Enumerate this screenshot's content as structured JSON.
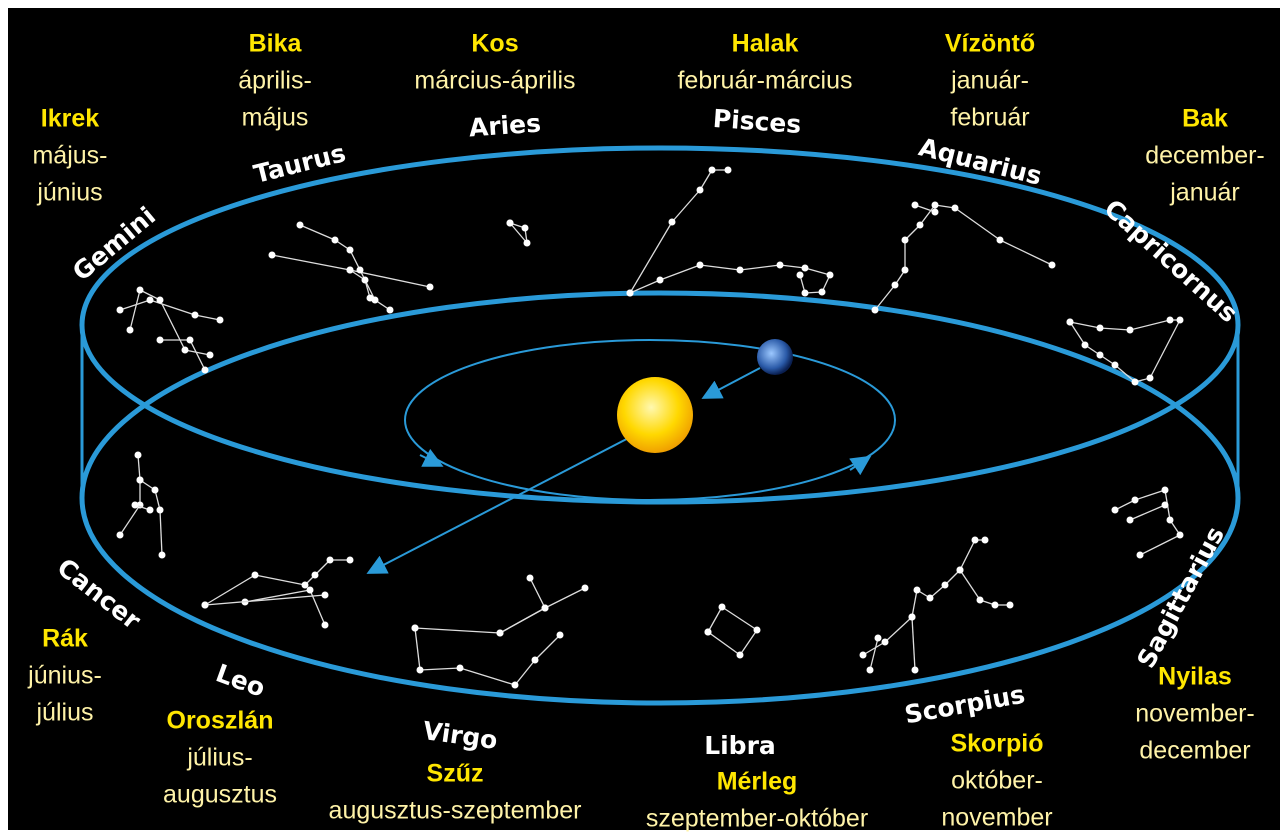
{
  "signs": [
    {
      "latin": "Taurus",
      "name": "Bika",
      "dates": [
        "április-",
        "május"
      ]
    },
    {
      "latin": "Aries",
      "name": "Kos",
      "dates": [
        "március-április"
      ]
    },
    {
      "latin": "Pisces",
      "name": "Halak",
      "dates": [
        "február-március"
      ]
    },
    {
      "latin": "Aquarius",
      "name": "Vízöntő",
      "dates": [
        "január-",
        "február"
      ]
    },
    {
      "latin": "Capricornus",
      "name": "Bak",
      "dates": [
        "december-",
        "január"
      ]
    },
    {
      "latin": "Gemini",
      "name": "Ikrek",
      "dates": [
        "május-",
        "június"
      ]
    },
    {
      "latin": "Cancer",
      "name": "Rák",
      "dates": [
        "június-",
        "július"
      ]
    },
    {
      "latin": "Leo",
      "name": "Oroszlán",
      "dates": [
        "július-",
        "augusztus"
      ]
    },
    {
      "latin": "Virgo",
      "name": "Szűz",
      "dates": [
        "augusztus-szeptember"
      ]
    },
    {
      "latin": "Libra",
      "name": "Mérleg",
      "dates": [
        "szeptember-október"
      ]
    },
    {
      "latin": "Scorpius",
      "name": "Skorpió",
      "dates": [
        "október-",
        "november"
      ]
    },
    {
      "latin": "Sagittarius",
      "name": "Nyilas",
      "dates": [
        "november-",
        "december"
      ]
    }
  ]
}
